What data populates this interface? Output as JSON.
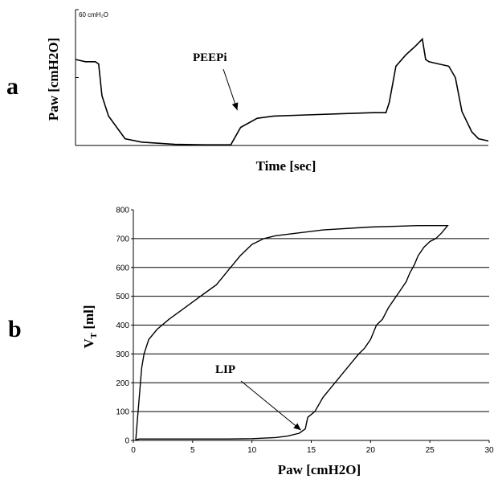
{
  "panel_letters": {
    "a": "a",
    "b": "b"
  },
  "chart_data": [
    {
      "type": "line",
      "panel": "a",
      "xlabel": "Time [sec]",
      "ylabel": "Paw [cmH2O]",
      "scale_label": "60  cmH₂O",
      "ylim": [
        0,
        60
      ],
      "grid": false,
      "annotations": [
        {
          "text": "PEEPi",
          "points_to": {
            "x": 0.49,
            "y": 14.5
          }
        }
      ],
      "series": [
        {
          "x": [
            0,
            0.03,
            0.06,
            0.07,
            0.08,
            0.1,
            0.15,
            0.2,
            0.3,
            0.4,
            0.47,
            0.5,
            0.55,
            0.6,
            0.7,
            0.8,
            0.9,
            0.94,
            0.95,
            0.97,
            1.0,
            1.03,
            1.05,
            1.06,
            1.07,
            1.1,
            1.13,
            1.15,
            1.17,
            1.2,
            1.22,
            1.25
          ],
          "y": [
            38,
            37,
            37,
            36,
            22,
            13,
            3,
            1.5,
            0.5,
            0.3,
            0.3,
            8,
            12,
            13,
            13.5,
            14,
            14.5,
            14.5,
            19,
            35,
            40,
            44,
            47,
            38,
            37,
            36,
            35,
            30,
            15,
            6,
            3,
            2
          ]
        }
      ]
    },
    {
      "type": "line",
      "panel": "b",
      "xlabel": "Paw [cmH2O]",
      "ylabel_main": "V",
      "ylabel_sub": "T",
      "ylabel_unit": " [ml]",
      "xlim": [
        0,
        30
      ],
      "ylim": [
        0,
        800
      ],
      "xticks": [
        0,
        5,
        10,
        15,
        20,
        25,
        30
      ],
      "yticks": [
        0,
        100,
        200,
        300,
        400,
        500,
        600,
        700,
        800
      ],
      "grid": "horizontal",
      "annotations": [
        {
          "text": "LIP",
          "points_to": {
            "x": 14,
            "y": 30
          }
        }
      ],
      "series": [
        {
          "x": [
            0.2,
            0.3,
            0.5,
            0.7,
            0.9,
            1.3,
            2,
            3,
            4,
            5,
            6,
            7,
            7.5,
            8,
            8.5,
            9,
            10,
            11,
            12,
            14,
            16,
            20,
            24,
            26,
            26.5,
            26,
            25.5,
            25,
            24.5,
            24,
            23.7,
            23.3,
            23,
            22.5,
            22,
            21.5,
            21,
            20.5,
            20,
            19.5,
            19,
            18,
            17,
            16,
            15.3,
            15,
            14.7,
            14.5,
            14,
            13,
            12,
            10,
            8,
            5,
            2,
            1,
            0.5,
            0.3,
            0.2
          ],
          "y": [
            0,
            50,
            150,
            250,
            300,
            350,
            385,
            420,
            450,
            480,
            510,
            540,
            565,
            590,
            615,
            640,
            680,
            700,
            710,
            720,
            730,
            740,
            745,
            745,
            745,
            720,
            700,
            690,
            670,
            640,
            610,
            580,
            550,
            520,
            490,
            460,
            420,
            400,
            350,
            320,
            300,
            250,
            200,
            150,
            100,
            90,
            80,
            40,
            25,
            15,
            10,
            6,
            5,
            5,
            5,
            5,
            5,
            3,
            0
          ]
        }
      ]
    }
  ]
}
